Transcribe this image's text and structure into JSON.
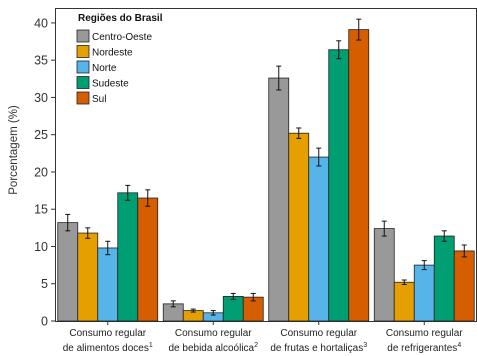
{
  "chart_data": {
    "type": "bar",
    "ylabel": "Porcentagem (%)",
    "xlabel": "",
    "ylim": [
      0,
      42
    ],
    "yticks": [
      0,
      5,
      10,
      15,
      20,
      25,
      30,
      35,
      40
    ],
    "grid": false,
    "legend_title": "Regiões do Brasil",
    "legend_position": "top-left",
    "categories": [
      {
        "line1": "Consumo regular",
        "line2": "de alimentos doces",
        "sup": "1"
      },
      {
        "line1": "Consumo regular",
        "line2": "de bebida alcoólica",
        "sup": "2"
      },
      {
        "line1": "Consumo regular",
        "line2": "de frutas e hortaliças",
        "sup": "3"
      },
      {
        "line1": "Consumo regular",
        "line2": "de refrigerantes",
        "sup": "4"
      }
    ],
    "series": [
      {
        "name": "Centro-Oeste",
        "color": "#999999",
        "values": [
          13.2,
          2.3,
          32.6,
          12.4
        ],
        "err": [
          1.1,
          0.4,
          1.6,
          1.0
        ]
      },
      {
        "name": "Nordeste",
        "color": "#E69F00",
        "values": [
          11.8,
          1.4,
          25.2,
          5.2
        ],
        "err": [
          0.7,
          0.2,
          0.7,
          0.3
        ]
      },
      {
        "name": "Norte",
        "color": "#56B4E9",
        "values": [
          9.8,
          1.1,
          22.0,
          7.5
        ],
        "err": [
          0.9,
          0.3,
          1.2,
          0.6
        ]
      },
      {
        "name": "Sudeste",
        "color": "#009E73",
        "values": [
          17.2,
          3.3,
          36.4,
          11.4
        ],
        "err": [
          1.0,
          0.4,
          1.2,
          0.7
        ]
      },
      {
        "name": "Sul",
        "color": "#D55E00",
        "values": [
          16.5,
          3.2,
          39.1,
          9.4
        ],
        "err": [
          1.1,
          0.5,
          1.4,
          0.8
        ]
      }
    ]
  }
}
